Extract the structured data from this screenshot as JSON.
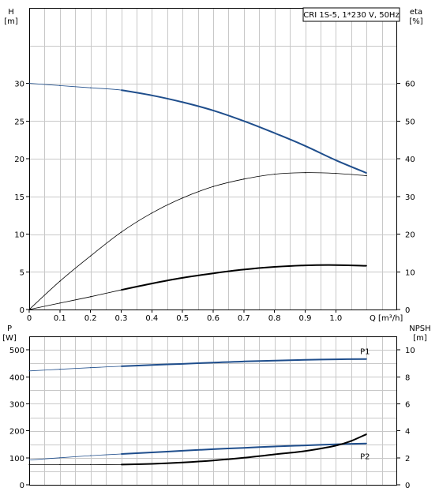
{
  "colors": {
    "blue": "#1f4e8c",
    "black": "#000000",
    "grid": "#c8c8c8"
  },
  "legend_text": "CRI 1S-5, 1*230 V, 50Hz",
  "chart_data": [
    {
      "type": "line",
      "panel": "top",
      "xlabel": "Q [m³/h]",
      "x_ticks": [
        0,
        0.1,
        0.2,
        0.3,
        0.4,
        0.5,
        0.6,
        0.7,
        0.8,
        0.9,
        1.0
      ],
      "x_tick_labels": [
        "0",
        "0.1",
        "0.2",
        "0.3",
        "0.4",
        "0.5",
        "0.6",
        "0.7",
        "0.8",
        "0.9",
        "1.0"
      ],
      "xlim": [
        0,
        1.2
      ],
      "y_left_label": [
        "H",
        "[m]"
      ],
      "y_left_ticks": [
        0,
        5,
        10,
        15,
        20,
        25,
        30
      ],
      "y_left_lim": [
        0,
        40
      ],
      "y_right_label": [
        "eta",
        "[%]"
      ],
      "y_right_ticks": [
        0,
        10,
        20,
        30,
        40,
        50,
        60
      ],
      "y_right_lim": [
        0,
        80
      ],
      "grid": true,
      "series": [
        {
          "key": "H",
          "axis": "left",
          "color": "#1f4e8c",
          "points": [
            [
              0,
              30.0
            ],
            [
              0.1,
              29.7
            ],
            [
              0.2,
              29.4
            ],
            [
              0.3,
              29.1
            ],
            [
              0.4,
              28.4
            ],
            [
              0.5,
              27.5
            ],
            [
              0.6,
              26.4
            ],
            [
              0.7,
              25.0
            ],
            [
              0.8,
              23.4
            ],
            [
              0.9,
              21.7
            ],
            [
              1.0,
              19.8
            ],
            [
              1.1,
              18.1
            ]
          ],
          "bold_from": 0.3
        },
        {
          "key": "eta",
          "axis": "right",
          "color": "#000000",
          "points": [
            [
              0,
              0
            ],
            [
              0.1,
              7.5
            ],
            [
              0.2,
              14.2
            ],
            [
              0.3,
              20.5
            ],
            [
              0.4,
              25.6
            ],
            [
              0.5,
              29.6
            ],
            [
              0.6,
              32.6
            ],
            [
              0.7,
              34.6
            ],
            [
              0.8,
              35.9
            ],
            [
              0.9,
              36.3
            ],
            [
              1.0,
              36.1
            ],
            [
              1.1,
              35.5
            ]
          ],
          "bold_from": null
        },
        {
          "key": "NPSH",
          "axis": "right",
          "color": "#000000",
          "points": [
            [
              0,
              0
            ],
            [
              0.1,
              1.7
            ],
            [
              0.2,
              3.4
            ],
            [
              0.3,
              5.2
            ],
            [
              0.4,
              6.9
            ],
            [
              0.5,
              8.4
            ],
            [
              0.6,
              9.6
            ],
            [
              0.7,
              10.6
            ],
            [
              0.8,
              11.3
            ],
            [
              0.9,
              11.7
            ],
            [
              1.0,
              11.8
            ],
            [
              1.1,
              11.6
            ]
          ],
          "bold_from": 0.3
        }
      ]
    },
    {
      "type": "line",
      "panel": "bottom",
      "y_left_label": [
        "P",
        "[W]"
      ],
      "y_left_ticks": [
        0,
        100,
        200,
        300,
        400,
        500
      ],
      "y_left_lim": [
        0,
        550
      ],
      "y_right_label": [
        "NPSH",
        "[m]"
      ],
      "y_right_ticks": [
        0,
        2,
        4,
        6,
        8,
        10
      ],
      "y_right_lim": [
        0,
        11
      ],
      "xlim": [
        0,
        1.2
      ],
      "grid": true,
      "series": [
        {
          "key": "P1",
          "name": "P1",
          "axis": "left",
          "color": "#1f4e8c",
          "points": [
            [
              0,
              422
            ],
            [
              0.1,
              428
            ],
            [
              0.2,
              434
            ],
            [
              0.3,
              439
            ],
            [
              0.4,
              444
            ],
            [
              0.5,
              448
            ],
            [
              0.6,
              453
            ],
            [
              0.7,
              457
            ],
            [
              0.8,
              460
            ],
            [
              0.9,
              463
            ],
            [
              1.0,
              465
            ],
            [
              1.1,
              466
            ]
          ],
          "bold_from": 0.3
        },
        {
          "key": "P2",
          "name": "P2",
          "axis": "left",
          "color": "#1f4e8c",
          "points": [
            [
              0,
              92
            ],
            [
              0.1,
              100
            ],
            [
              0.2,
              108
            ],
            [
              0.3,
              114
            ],
            [
              0.4,
              120
            ],
            [
              0.5,
              126
            ],
            [
              0.6,
              132
            ],
            [
              0.7,
              137
            ],
            [
              0.8,
              142
            ],
            [
              0.9,
              146
            ],
            [
              1.0,
              150
            ],
            [
              1.1,
              153
            ]
          ],
          "bold_from": 0.3
        },
        {
          "key": "NPSH_req",
          "axis": "right",
          "color": "#000000",
          "points": [
            [
              0,
              1.5
            ],
            [
              0.1,
              1.5
            ],
            [
              0.2,
              1.5
            ],
            [
              0.3,
              1.5
            ],
            [
              0.4,
              1.55
            ],
            [
              0.5,
              1.65
            ],
            [
              0.6,
              1.8
            ],
            [
              0.7,
              2.0
            ],
            [
              0.8,
              2.25
            ],
            [
              0.9,
              2.5
            ],
            [
              1.0,
              2.9
            ],
            [
              1.05,
              3.25
            ],
            [
              1.1,
              3.75
            ]
          ],
          "bold_from": 0.3
        }
      ]
    }
  ]
}
